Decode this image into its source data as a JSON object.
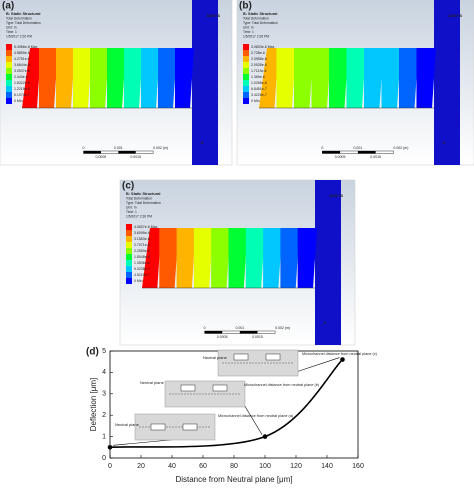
{
  "panels": [
    {
      "label": "(a)",
      "logo": "ANSYS",
      "header": [
        "B: Static Structural",
        "Total Deformation",
        "Type: Total Deformation",
        "Unit: m",
        "Time: 1",
        "1/5/2017 2:20 PM"
      ],
      "legend": [
        "5.4966e-6 Max",
        "4.8859e-6",
        "4.2751e-6",
        "3.6644e-6",
        "3.0537e-6",
        "2.443e-6",
        "1.8322e-6",
        "1.2215e-6",
        "6.1074e-7",
        "0 Min"
      ],
      "scale": [
        "0",
        "0.001",
        "0.002 (m)",
        "0.0005",
        "0.0015"
      ]
    },
    {
      "label": "(b)",
      "logo": "ANSYS",
      "header": [
        "B: Static Structural",
        "Total Deformation",
        "Type: Total Deformation",
        "Unit: m",
        "Time: 1",
        "1/5/2017 2:26 PM"
      ],
      "legend": [
        "3.0803e-6 Max",
        "2.738e-6",
        "2.3958e-6",
        "2.0535e-6",
        "1.7113e-6",
        "1.369e-6",
        "1.0268e-6",
        "6.8451e-7",
        "3.4225e-7",
        "0 Min"
      ],
      "scale": [
        "0",
        "0.001",
        "0.002 (m)",
        "0.0005",
        "0.0015"
      ]
    },
    {
      "label": "(c)",
      "logo": "ANSYS",
      "header": [
        "B: Static Structural",
        "Total Deformation",
        "Type: Total Deformation",
        "Unit: m",
        "Time: 1",
        "1/5/2017 2:30 PM"
      ],
      "legend": [
        "4.0607e-6 Max",
        "3.6095e-6",
        "3.1583e-6",
        "2.7071e-6",
        "2.2559e-6",
        "1.8048e-6",
        "1.3536e-6",
        "9.0238e-7",
        "4.5119e-7",
        "0 Min"
      ],
      "scale": [
        "0",
        "0.001",
        "0.002 (m)",
        "0.0005",
        "0.0015"
      ]
    }
  ],
  "chart_data": {
    "type": "line",
    "label": "(d)",
    "x": [
      0,
      100,
      150
    ],
    "series": [
      {
        "color": "#000000",
        "values": [
          0.5,
          1.0,
          4.6
        ]
      }
    ],
    "xlim": [
      0,
      160
    ],
    "ylim": [
      0,
      5
    ],
    "xticks": [
      0,
      20,
      40,
      60,
      80,
      100,
      120,
      140,
      160
    ],
    "yticks": [
      0,
      1,
      2,
      3,
      4,
      5
    ],
    "xlabel": "Distance from Neutral plane [μm]",
    "ylabel": "Deflection [μm]",
    "annotations": [
      {
        "plane": "Neutral plane",
        "text": "Microchannel distance from neutral plane (a)"
      },
      {
        "plane": "Neutral plane",
        "text": "Microchannel distance from neutral plane (b)"
      },
      {
        "plane": "Neutral plane",
        "text": "Microchannel distance from neutral plane (c)"
      }
    ]
  }
}
